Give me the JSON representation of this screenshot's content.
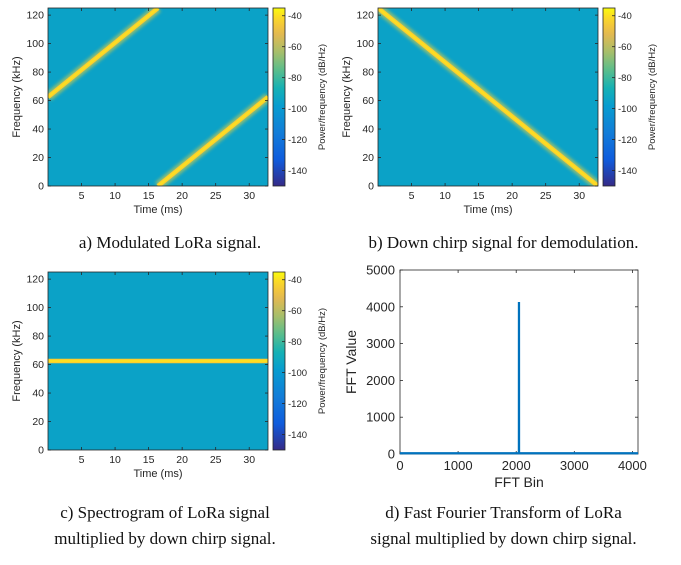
{
  "captions": [
    "a) Modulated LoRa signal.",
    "b) Down chirp signal for demodulation.",
    "c) Spectrogram of LoRa signal",
    "multiplied by down chirp signal.",
    "d) Fast Fourier Transform of LoRa",
    "signal multiplied by down chirp signal."
  ],
  "chart_data": [
    {
      "type": "heatmap",
      "id": "a",
      "title": "",
      "xlabel": "Time (ms)",
      "ylabel": "Frequency (kHz)",
      "xlim": [
        0,
        32.8
      ],
      "ylim": [
        0,
        125
      ],
      "xticks": [
        5,
        10,
        15,
        20,
        25,
        30
      ],
      "yticks": [
        0,
        20,
        40,
        60,
        80,
        100,
        120
      ],
      "colorbar_label": "Power/frequency (dB/Hz)",
      "colorbar_ticks": [
        -40,
        -60,
        -80,
        -100,
        -120,
        -140
      ],
      "colorbar_range": [
        -150,
        -35
      ],
      "background_level_db": -95,
      "traces": [
        {
          "x": [
            0,
            16.4
          ],
          "y": [
            62.5,
            125
          ],
          "peak_db": -40
        },
        {
          "x": [
            16.4,
            32.8
          ],
          "y": [
            0,
            62.5
          ],
          "peak_db": -40
        }
      ]
    },
    {
      "type": "heatmap",
      "id": "b",
      "title": "",
      "xlabel": "Time (ms)",
      "ylabel": "Frequency (kHz)",
      "xlim": [
        0,
        32.8
      ],
      "ylim": [
        0,
        125
      ],
      "xticks": [
        5,
        10,
        15,
        20,
        25,
        30
      ],
      "yticks": [
        0,
        20,
        40,
        60,
        80,
        100,
        120
      ],
      "colorbar_label": "Power/frequency (dB/Hz)",
      "colorbar_ticks": [
        -40,
        -60,
        -80,
        -100,
        -120,
        -140
      ],
      "colorbar_range": [
        -150,
        -35
      ],
      "background_level_db": -95,
      "traces": [
        {
          "x": [
            0,
            32.8
          ],
          "y": [
            125,
            0
          ],
          "peak_db": -40
        }
      ]
    },
    {
      "type": "heatmap",
      "id": "c",
      "title": "",
      "xlabel": "Time (ms)",
      "ylabel": "Frequency (kHz)",
      "xlim": [
        0,
        32.8
      ],
      "ylim": [
        0,
        125
      ],
      "xticks": [
        5,
        10,
        15,
        20,
        25,
        30
      ],
      "yticks": [
        0,
        20,
        40,
        60,
        80,
        100,
        120
      ],
      "colorbar_label": "Power/frequency (dB/Hz)",
      "colorbar_ticks": [
        -40,
        -60,
        -80,
        -100,
        -120,
        -140
      ],
      "colorbar_range": [
        -150,
        -35
      ],
      "background_level_db": -95,
      "traces": [
        {
          "x": [
            0,
            32.8
          ],
          "y": [
            62.5,
            62.5
          ],
          "peak_db": -40
        }
      ]
    },
    {
      "type": "line",
      "id": "d",
      "title": "",
      "xlabel": "FFT Bin",
      "ylabel": "FFT  Value",
      "xlim": [
        0,
        4096
      ],
      "ylim": [
        0,
        5000
      ],
      "xticks": [
        0,
        1000,
        2000,
        3000,
        4000
      ],
      "yticks": [
        0,
        1000,
        2000,
        3000,
        4000,
        5000
      ],
      "grid": false,
      "series": [
        {
          "x": [
            0,
            2046,
            2047,
            2048,
            2049,
            4096
          ],
          "values": [
            20,
            20,
            4100,
            4100,
            20,
            20
          ]
        }
      ],
      "colors": {
        "line": "#0072BD"
      }
    }
  ]
}
